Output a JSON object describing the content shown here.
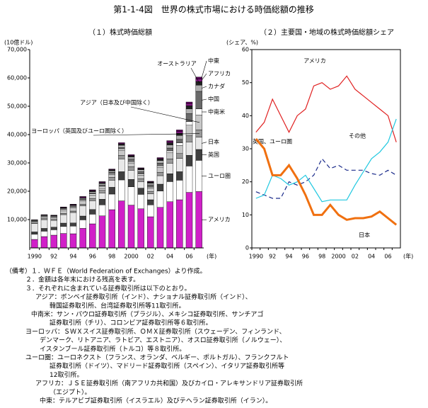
{
  "title": "第1-1-4図　世界の株式市場における時価総額の推移",
  "chart_data": [
    {
      "type": "stacked-bar",
      "title": "（１）株式時価総額",
      "ylabel": "(10億ドル)",
      "xlabel": "(年)",
      "categories": [
        "1990",
        null,
        "92",
        null,
        "94",
        null,
        "96",
        null,
        "98",
        null,
        "2000",
        null,
        "02",
        null,
        "04",
        null,
        "06",
        null
      ],
      "ylim": [
        0,
        70000
      ],
      "yticks": [
        {
          "value": 10000,
          "label": "10,000"
        },
        {
          "value": 20000,
          "label": "20,000"
        },
        {
          "value": 30000,
          "label": "30,000"
        },
        {
          "value": 40000,
          "label": "40,000"
        },
        {
          "value": 50000,
          "label": "50,000"
        },
        {
          "value": 60000,
          "label": "60,000"
        },
        {
          "value": 70000,
          "label": "70,000"
        }
      ],
      "series": [
        {
          "name": "アメリカ",
          "color": "#d020c8",
          "values": [
            3000,
            4000,
            4500,
            5100,
            5000,
            6900,
            8500,
            11300,
            13500,
            16600,
            15100,
            13800,
            11000,
            14300,
            16300,
            17000,
            19600,
            19900
          ]
        },
        {
          "name": "ユーロ圏",
          "color": "#ffffff",
          "values": [
            1800,
            1900,
            1900,
            2500,
            2700,
            3000,
            3400,
            3900,
            5500,
            7400,
            6500,
            5100,
            4200,
            5800,
            7100,
            6900,
            9300,
            11000
          ]
        },
        {
          "name": "英国",
          "color": "#404040",
          "values": [
            850,
            990,
            930,
            1150,
            1100,
            1350,
            1650,
            2000,
            2400,
            2900,
            2600,
            2200,
            1800,
            2400,
            2800,
            3000,
            3800,
            3850
          ]
        },
        {
          "name": "日本",
          "color": "#e8e8e8",
          "values": [
            2900,
            3100,
            2400,
            3000,
            3700,
            3600,
            3100,
            2200,
            2500,
            4500,
            3200,
            2300,
            2100,
            3000,
            3700,
            4700,
            4700,
            4300
          ]
        },
        {
          "name": "ヨーロッパ（英国及びユーロ圏除く）",
          "color": "#9a9a9a",
          "values": [
            300,
            350,
            350,
            450,
            500,
            600,
            750,
            900,
            1000,
            1300,
            1300,
            1000,
            850,
            1200,
            1500,
            1700,
            2200,
            2600
          ]
        },
        {
          "name": "アジア（日本及び中国除く）",
          "color": "#c8c8c8",
          "values": [
            500,
            600,
            650,
            1000,
            1100,
            1200,
            1300,
            900,
            1000,
            1700,
            1300,
            1300,
            1200,
            1800,
            2200,
            2900,
            3700,
            5300
          ]
        },
        {
          "name": "中南米",
          "color": "#ffffff",
          "values": [
            100,
            200,
            250,
            400,
            350,
            350,
            400,
            500,
            350,
            500,
            450,
            400,
            350,
            500,
            650,
            900,
            1300,
            2100
          ]
        },
        {
          "name": "中国",
          "color": "#6a6a6a",
          "values": [
            0,
            0,
            0,
            50,
            150,
            150,
            250,
            450,
            400,
            550,
            900,
            850,
            750,
            950,
            1000,
            1200,
            2800,
            6200
          ]
        },
        {
          "name": "カナダ",
          "color": "#b0b0b0",
          "values": [
            240,
            270,
            240,
            330,
            320,
            370,
            480,
            570,
            540,
            790,
            760,
            620,
            570,
            880,
            1100,
            1400,
            1700,
            2200
          ]
        },
        {
          "name": "オーストラリア",
          "color": "#202020",
          "values": [
            110,
            140,
            130,
            200,
            220,
            250,
            310,
            300,
            330,
            430,
            380,
            400,
            400,
            590,
            780,
            800,
            1100,
            1300
          ]
        },
        {
          "name": "アフリカ",
          "color": "#8a1a8a",
          "values": [
            100,
            130,
            130,
            200,
            220,
            280,
            250,
            250,
            180,
            270,
            210,
            150,
            150,
            250,
            380,
            550,
            700,
            850
          ]
        },
        {
          "name": "中東",
          "color": "#5a005a",
          "values": [
            50,
            60,
            70,
            80,
            80,
            100,
            120,
            130,
            150,
            200,
            200,
            150,
            150,
            200,
            350,
            600,
            600,
            700
          ]
        }
      ]
    },
    {
      "type": "line",
      "title": "（２）主要国・地域の株式時価総額シェア",
      "ylabel": "(シェア、%)",
      "xlabel": "(年)",
      "categories": [
        "1990",
        null,
        "92",
        null,
        "94",
        null,
        "96",
        null,
        "98",
        null,
        "2000",
        null,
        "02",
        null,
        "04",
        null,
        "06",
        null
      ],
      "ylim": [
        0,
        60
      ],
      "yticks": [
        0,
        10,
        20,
        30,
        40,
        50,
        60
      ],
      "series": [
        {
          "name": "アメリカ",
          "color": "#e02020",
          "values": [
            35,
            38,
            45,
            40,
            35,
            40,
            42,
            49,
            50,
            48,
            49,
            52,
            48,
            46,
            44,
            42,
            40,
            32
          ]
        },
        {
          "name": "英国、ユーロ圏",
          "color": "#1a2a8a",
          "dash": true,
          "values": [
            17,
            16,
            15,
            15,
            20,
            19,
            20,
            22,
            27,
            24,
            25,
            23.5,
            23.5,
            23.5,
            22.5,
            22,
            23.5,
            22
          ]
        },
        {
          "name": "その他",
          "color": "#20c8e0",
          "values": [
            15,
            16,
            22,
            21,
            19,
            20,
            22,
            18,
            14,
            14.5,
            14.5,
            14.5,
            19,
            23,
            27,
            29,
            32,
            39
          ]
        },
        {
          "name": "日本",
          "color": "#f07010",
          "width": 3,
          "values": [
            33,
            30,
            22,
            22,
            25,
            21,
            16,
            10,
            10,
            13,
            10,
            8.5,
            9,
            9,
            9.5,
            11,
            9,
            7
          ]
        }
      ]
    }
  ],
  "notes": [
    "（備考）１．ＷＦＥ（World Federation of Exchanges）より作成。",
    "２．金額は各年末における残高を表す。",
    "３．それぞれに含まれている証券取引所は以下のとおり。",
    "アジア：ボンベイ証券取引所（インド）、ナショナル証券取引所（インド）、",
    "韓国証券取引所、台湾証券取引所等11取引所。",
    "中南米：サン・パウロ証券取引所（ブラジル）、メキシコ証券取引所、サンチアゴ",
    "証券取引所（チリ）、コロンビア証券取引所等６取引所。",
    "ヨーロッパ：ＳＷＸスイス証券取引所、ＯＭＸ証券取引所（スウェーデン、フィンランド、",
    "デンマーク、リトアニア、ラトビア、エストニア）、オスロ証券取引所（ノルウェー）、",
    "イスタンブール証券取引所（トルコ）等８取引所。",
    "ユーロ圏：ユーロネクスト（フランス、オランダ、ベルギー、ポルトガル）、フランクフルト",
    "証券取引所（ドイツ）、マドリード証券取引所（スペイン）、イタリア証券取引所等",
    "12取引所。",
    "アフリカ：ＪＳＥ証券取引所（南アフリカ共和国）及びカイロ・アレキサンドリア証券取引所",
    "（エジプト）。",
    "中東：テルアビブ証券取引所（イスラエル）及びテヘラン証券取引所（イラン）。"
  ]
}
